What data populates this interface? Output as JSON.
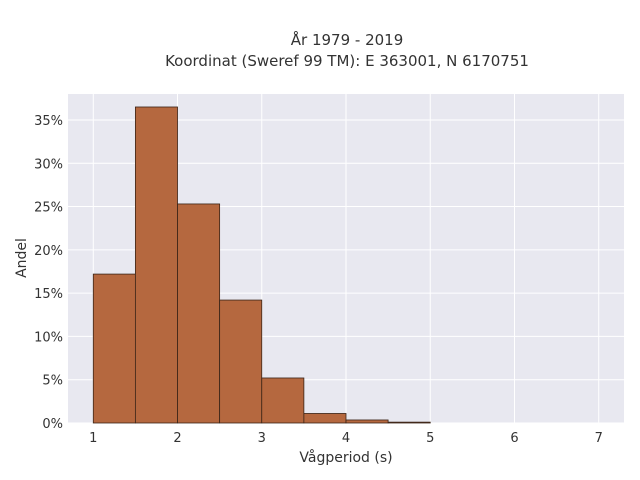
{
  "chart_data": {
    "type": "bar",
    "title": "År 1979 - 2019",
    "subtitle": "Koordinat (Sweref 99 TM): E 363001, N 6170751",
    "xlabel": "Vågperiod (s)",
    "ylabel": "Andel",
    "x_ticks": [
      1,
      2,
      3,
      4,
      5,
      6,
      7
    ],
    "y_ticks": [
      0,
      5,
      10,
      15,
      20,
      25,
      30,
      35
    ],
    "y_tick_labels": [
      "0%",
      "5%",
      "10%",
      "15%",
      "20%",
      "25%",
      "30%",
      "35%"
    ],
    "xlim": [
      0.7,
      7.3
    ],
    "ylim": [
      0,
      38
    ],
    "grid": true,
    "bins": [
      {
        "start": 1.0,
        "end": 1.5,
        "value": 17.2
      },
      {
        "start": 1.5,
        "end": 2.0,
        "value": 36.5
      },
      {
        "start": 2.0,
        "end": 2.5,
        "value": 25.3
      },
      {
        "start": 2.5,
        "end": 3.0,
        "value": 14.2
      },
      {
        "start": 3.0,
        "end": 3.5,
        "value": 5.2
      },
      {
        "start": 3.5,
        "end": 4.0,
        "value": 1.1
      },
      {
        "start": 4.0,
        "end": 4.5,
        "value": 0.35
      },
      {
        "start": 4.5,
        "end": 5.0,
        "value": 0.1
      }
    ],
    "bar_color": "#b5683f",
    "bar_edge_color": "#3a2417",
    "plot_background": "#e8e8f0",
    "grid_color": "#ffffff"
  }
}
